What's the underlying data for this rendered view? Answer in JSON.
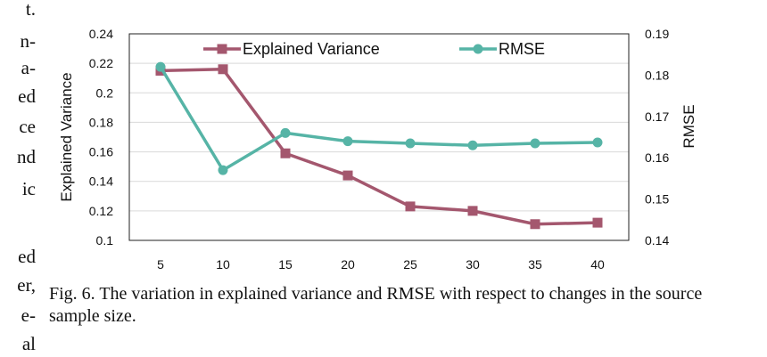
{
  "left_column_fragments": [
    "t.",
    "n-",
    "a-",
    "ed",
    "ce",
    "nd",
    "ic",
    "",
    "ed",
    "er,",
    "e-",
    "al"
  ],
  "caption": "Fig. 6.  The variation in explained variance and RMSE with respect to changes in the source sample size.",
  "chart_data": {
    "type": "line",
    "x": [
      5,
      10,
      15,
      20,
      25,
      30,
      35,
      40
    ],
    "xticks": [
      "5",
      "10",
      "15",
      "20",
      "25",
      "30",
      "35",
      "40"
    ],
    "ylabel": "Explained Variance",
    "y2label": "RMSE",
    "ylim": [
      0.1,
      0.24
    ],
    "yticks": [
      "0.1",
      "0.12",
      "0.14",
      "0.16",
      "0.18",
      "0.2",
      "0.22",
      "0.24"
    ],
    "y2lim": [
      0.14,
      0.19
    ],
    "y2ticks": [
      "0.14",
      "0.15",
      "0.16",
      "0.17",
      "0.18",
      "0.19"
    ],
    "grid": true,
    "legend_position": "top",
    "series": [
      {
        "name": "Explained Variance",
        "axis": "left",
        "color": "#a4576e",
        "marker": "square",
        "values": [
          0.215,
          0.216,
          0.159,
          0.144,
          0.123,
          0.12,
          0.111,
          0.112
        ]
      },
      {
        "name": "RMSE",
        "axis": "right",
        "color": "#56b4a6",
        "marker": "circle",
        "values": [
          0.182,
          0.157,
          0.166,
          0.164,
          0.1635,
          0.163,
          0.1635,
          0.1637
        ]
      }
    ]
  }
}
